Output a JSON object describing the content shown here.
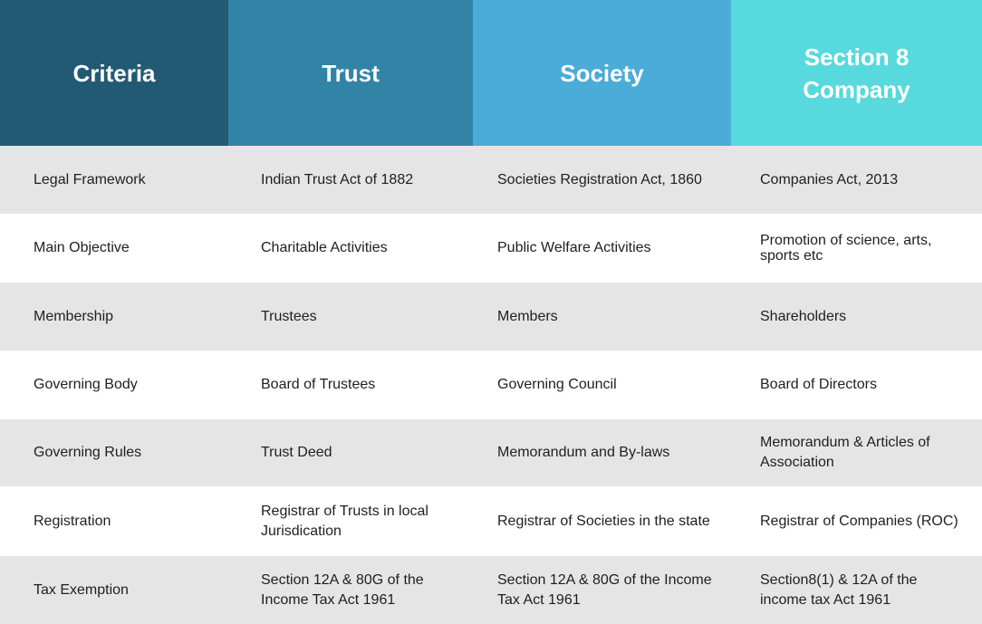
{
  "headers": [
    "Criteria",
    "Trust",
    "Society",
    "Section 8 Company"
  ],
  "rows": [
    {
      "criteria": "Legal Framework",
      "trust": "Indian Trust Act of 1882",
      "society": "Societies Registration Act, 1860",
      "section8": "Companies Act, 2013"
    },
    {
      "criteria": "Main Objective",
      "trust": "Charitable Activities",
      "society": "Public Welfare Activities",
      "section8": "Promotion of science, arts, sports etc"
    },
    {
      "criteria": "Membership",
      "trust": "Trustees",
      "society": "Members",
      "section8": "Shareholders"
    },
    {
      "criteria": "Governing Body",
      "trust": "Board of Trustees",
      "society": "Governing Council",
      "section8": "Board of Directors"
    },
    {
      "criteria": "Governing Rules",
      "trust": "Trust Deed",
      "society": "Memorandum and By-laws",
      "section8": "Memorandum & Articles of Association"
    },
    {
      "criteria": "Registration",
      "trust": "Registrar of Trusts in local Jurisdication",
      "society": "Registrar of Societies in the state",
      "section8": "Registrar of Companies (ROC)"
    },
    {
      "criteria": "Tax Exemption",
      "trust": "Section 12A & 80G of the Income Tax Act 1961",
      "society": "Section 12A & 80G of the Income Tax Act 1961",
      "section8": "Section8(1) & 12A of the income tax Act 1961"
    }
  ],
  "colors": {
    "criteria_header": "#235a73",
    "trust_header": "#3184a6",
    "society_header": "#4babd9",
    "section8_header": "#58d9dd",
    "row_alt": "#e5e5e5"
  }
}
